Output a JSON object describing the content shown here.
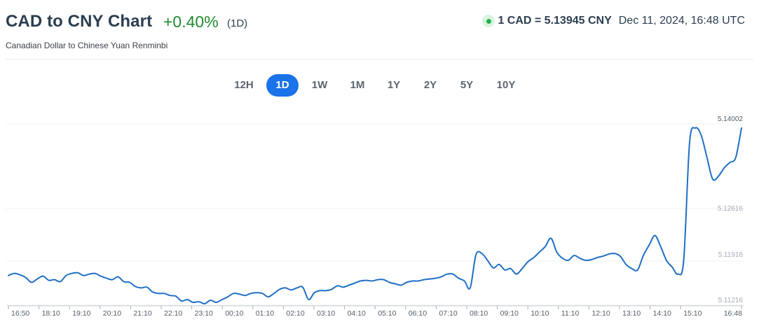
{
  "header": {
    "title": "CAD to CNY Chart",
    "change": "+0.40%",
    "period": "(1D)",
    "subtitle": "Canadian Dollar to Chinese Yuan Renminbi",
    "rate": "1 CAD = 5.13945 CNY",
    "datetime": "Dec 11, 2024, 16:48 UTC",
    "status_color": "#22b14c",
    "change_color": "#1e8a2e"
  },
  "tabs": [
    {
      "label": "12H",
      "active": false
    },
    {
      "label": "1D",
      "active": true
    },
    {
      "label": "1W",
      "active": false
    },
    {
      "label": "1M",
      "active": false
    },
    {
      "label": "1Y",
      "active": false
    },
    {
      "label": "2Y",
      "active": false
    },
    {
      "label": "5Y",
      "active": false
    },
    {
      "label": "10Y",
      "active": false
    }
  ],
  "chart_data": {
    "type": "line",
    "line_color": "#1f6fc5",
    "y_ticks": [
      "5.14002",
      "5.12616",
      "5.11916",
      "5.11216"
    ],
    "x_ticks": [
      "16:50",
      "18:10",
      "19:10",
      "20:10",
      "21:10",
      "22:10",
      "23:10",
      "00:10",
      "01:10",
      "02:10",
      "03:10",
      "04:10",
      "05:10",
      "06:10",
      "07:10",
      "08:10",
      "09:10",
      "10:10",
      "11:10",
      "12:10",
      "13:10",
      "14:10",
      "15:10",
      "16:48"
    ],
    "grid": "horizontal",
    "series": [
      {
        "y": [
          5.118,
          5.1183,
          5.1181,
          5.1177,
          5.117,
          5.1175,
          5.1179,
          5.1173,
          5.1174,
          5.1171,
          5.118,
          5.1183,
          5.1184,
          5.118,
          5.1182,
          5.1183,
          5.1179,
          5.1176,
          5.1174,
          5.1178,
          5.1171,
          5.117,
          5.1164,
          5.1162,
          5.1163,
          5.1156,
          5.1154,
          5.1154,
          5.1151,
          5.115,
          5.1143,
          5.1145,
          5.1141,
          5.1142,
          5.1139,
          5.1144,
          5.1141,
          5.1145,
          5.1149,
          5.1154,
          5.1153,
          5.1151,
          5.1154,
          5.1155,
          5.1154,
          5.1149,
          5.1154,
          5.116,
          5.1162,
          5.1159,
          5.1162,
          5.1163,
          5.1145,
          5.1155,
          5.1158,
          5.1158,
          5.116,
          5.1165,
          5.1163,
          5.1166,
          5.1169,
          5.1172,
          5.1173,
          5.1172,
          5.1174,
          5.1174,
          5.117,
          5.1168,
          5.1166,
          5.117,
          5.1172,
          5.1172,
          5.1174,
          5.1175,
          5.1176,
          5.1178,
          5.1182,
          5.1182,
          5.1176,
          5.1172,
          5.1162,
          5.121,
          5.1212,
          5.1202,
          5.1191,
          5.1196,
          5.1188,
          5.119,
          5.1182,
          5.119,
          5.12,
          5.1206,
          5.1214,
          5.1222,
          5.1234,
          5.1214,
          5.1205,
          5.1202,
          5.1209,
          5.1205,
          5.1202,
          5.1203,
          5.1206,
          5.1208,
          5.1211,
          5.1212,
          5.1208,
          5.1196,
          5.119,
          5.1188,
          5.1209,
          5.1224,
          5.1238,
          5.1222,
          5.1202,
          5.1192,
          5.1182,
          5.1203,
          5.1372,
          5.1394,
          5.1384,
          5.1352,
          5.132,
          5.1324,
          5.1336,
          5.1344,
          5.1351,
          5.1394
        ]
      }
    ]
  }
}
